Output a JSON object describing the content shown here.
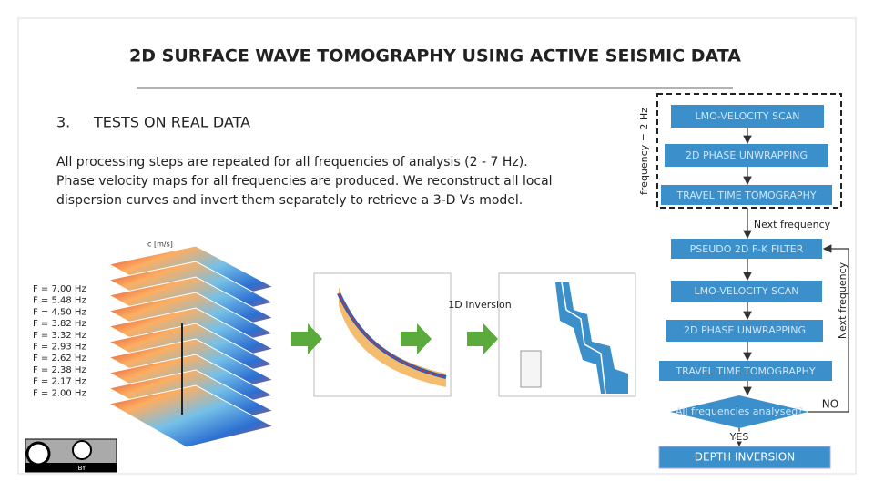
{
  "header": {
    "title": "2D SURFACE WAVE TOMOGRAPHY USING ACTIVE SEISMIC DATA"
  },
  "section": {
    "number": "3.",
    "title": "TESTS ON REAL DATA",
    "paragraph": [
      "All processing steps are repeated for all frequencies of analysis (2 - 7 Hz).",
      "Phase velocity maps for all frequencies are produced. We reconstruct all local",
      "dispersion curves and invert them separately to retrieve a 3-D Vs model."
    ]
  },
  "figure": {
    "velocity_label": "c [m/s]",
    "frequency_labels": [
      "F = 7.00 Hz",
      "F = 5.48 Hz",
      "F = 4.50 Hz",
      "F = 3.82 Hz",
      "F = 3.32 Hz",
      "F = 2.93 Hz",
      "F = 2.62 Hz",
      "F = 2.38 Hz",
      "F = 2.17 Hz",
      "F = 2.00 Hz"
    ],
    "inversion_label": "1D Inversion"
  },
  "flowchart": {
    "first_pass": {
      "label": "frequency = 2 Hz",
      "steps": [
        "LMO-VELOCITY SCAN",
        "2D PHASE UNWRAPPING",
        "TRAVEL TIME TOMOGRAPHY"
      ]
    },
    "next_label": "Next frequency",
    "loop": {
      "label": "Next frequency",
      "steps": [
        "PSEUDO 2D F-K FILTER",
        "LMO-VELOCITY SCAN",
        "2D PHASE UNWRAPPING",
        "TRAVEL TIME TOMOGRAPHY"
      ]
    },
    "decision": "All frequencies analysed?",
    "no": "NO",
    "yes": "YES",
    "final": "DEPTH INVERSION"
  },
  "license": {
    "badge": "BY"
  }
}
